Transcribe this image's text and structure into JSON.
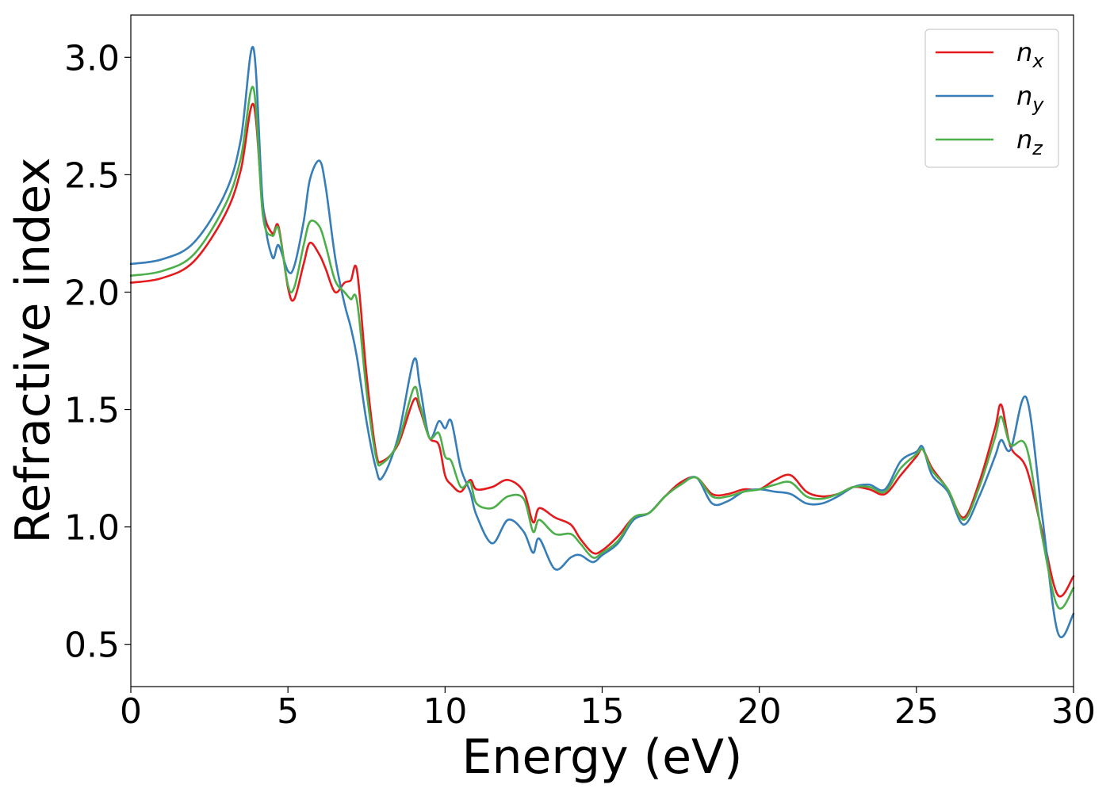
{
  "chart_data": {
    "type": "line",
    "xlabel": "Energy (eV)",
    "ylabel": "Refractive index",
    "xlim": [
      0,
      30
    ],
    "ylim": [
      0.32,
      3.18
    ],
    "xticks": [
      0,
      5,
      10,
      15,
      20,
      25,
      30
    ],
    "yticks": [
      0.5,
      1.0,
      1.5,
      2.0,
      2.5,
      3.0
    ],
    "xtick_labels": [
      "0",
      "5",
      "10",
      "15",
      "20",
      "25",
      "30"
    ],
    "ytick_labels": [
      "0.5",
      "1.0",
      "1.5",
      "2.0",
      "2.5",
      "3.0"
    ],
    "grid": false,
    "legend_position": "top-right",
    "series": [
      {
        "name": "n_x",
        "label_base": "n",
        "label_sub": "x",
        "color": "#e41a1c",
        "x": [
          0,
          1,
          2,
          3,
          3.5,
          3.9,
          4.2,
          4.5,
          4.7,
          5.0,
          5.2,
          5.5,
          5.7,
          6.0,
          6.2,
          6.5,
          6.8,
          7.0,
          7.2,
          7.5,
          7.8,
          8.0,
          8.5,
          9.0,
          9.2,
          9.5,
          9.8,
          10.0,
          10.2,
          10.5,
          10.8,
          11.0,
          11.5,
          12.0,
          12.5,
          12.8,
          13.0,
          13.5,
          14.0,
          14.3,
          14.7,
          15.0,
          15.5,
          16.0,
          16.5,
          17.0,
          17.5,
          18.0,
          18.5,
          19.0,
          19.5,
          20.0,
          20.5,
          21.0,
          21.5,
          22.0,
          22.5,
          23.0,
          23.5,
          24.0,
          24.5,
          25.0,
          25.2,
          25.5,
          26.0,
          26.5,
          27.0,
          27.5,
          27.7,
          28.0,
          28.5,
          29.0,
          29.5,
          30.0
        ],
        "y": [
          2.04,
          2.06,
          2.13,
          2.33,
          2.52,
          2.8,
          2.37,
          2.25,
          2.28,
          2.02,
          1.97,
          2.12,
          2.21,
          2.16,
          2.1,
          2.0,
          2.04,
          2.05,
          2.09,
          1.65,
          1.32,
          1.28,
          1.35,
          1.54,
          1.5,
          1.38,
          1.35,
          1.22,
          1.18,
          1.15,
          1.2,
          1.16,
          1.17,
          1.2,
          1.15,
          1.02,
          1.08,
          1.04,
          1.01,
          0.95,
          0.89,
          0.9,
          0.96,
          1.04,
          1.06,
          1.13,
          1.19,
          1.21,
          1.14,
          1.14,
          1.16,
          1.16,
          1.2,
          1.22,
          1.15,
          1.13,
          1.14,
          1.17,
          1.16,
          1.14,
          1.22,
          1.3,
          1.33,
          1.25,
          1.16,
          1.04,
          1.19,
          1.42,
          1.52,
          1.34,
          1.25,
          0.98,
          0.71,
          0.79
        ]
      },
      {
        "name": "n_y",
        "label_base": "n",
        "label_sub": "y",
        "color": "#377eb8",
        "x": [
          0,
          1,
          2,
          3,
          3.5,
          3.9,
          4.2,
          4.5,
          4.7,
          5.0,
          5.2,
          5.5,
          5.7,
          6.0,
          6.2,
          6.5,
          6.8,
          7.0,
          7.2,
          7.5,
          7.8,
          8.0,
          8.5,
          9.0,
          9.2,
          9.5,
          9.8,
          10.0,
          10.2,
          10.5,
          10.8,
          11.0,
          11.5,
          12.0,
          12.5,
          12.8,
          13.0,
          13.5,
          14.0,
          14.3,
          14.7,
          15.0,
          15.5,
          16.0,
          16.5,
          17.0,
          17.5,
          18.0,
          18.5,
          19.0,
          19.5,
          20.0,
          20.5,
          21.0,
          21.5,
          22.0,
          22.5,
          23.0,
          23.5,
          24.0,
          24.5,
          25.0,
          25.2,
          25.5,
          26.0,
          26.5,
          27.0,
          27.5,
          27.7,
          28.0,
          28.5,
          29.0,
          29.5,
          30.0
        ],
        "y": [
          2.12,
          2.14,
          2.21,
          2.42,
          2.65,
          3.04,
          2.38,
          2.15,
          2.2,
          2.09,
          2.11,
          2.3,
          2.48,
          2.56,
          2.45,
          2.15,
          1.95,
          1.85,
          1.72,
          1.45,
          1.25,
          1.21,
          1.38,
          1.71,
          1.6,
          1.38,
          1.45,
          1.42,
          1.45,
          1.25,
          1.15,
          1.05,
          0.93,
          1.03,
          0.98,
          0.89,
          0.95,
          0.82,
          0.87,
          0.88,
          0.85,
          0.88,
          0.93,
          1.03,
          1.06,
          1.13,
          1.18,
          1.21,
          1.1,
          1.11,
          1.15,
          1.16,
          1.15,
          1.14,
          1.1,
          1.1,
          1.13,
          1.17,
          1.18,
          1.16,
          1.28,
          1.32,
          1.34,
          1.22,
          1.15,
          1.01,
          1.13,
          1.3,
          1.37,
          1.33,
          1.55,
          1.05,
          0.55,
          0.63
        ]
      },
      {
        "name": "n_z",
        "label_base": "n",
        "label_sub": "z",
        "color": "#4daf4a",
        "x": [
          0,
          1,
          2,
          3,
          3.5,
          3.9,
          4.2,
          4.5,
          4.7,
          5.0,
          5.2,
          5.5,
          5.7,
          6.0,
          6.2,
          6.5,
          6.8,
          7.0,
          7.2,
          7.5,
          7.8,
          8.0,
          8.5,
          9.0,
          9.2,
          9.5,
          9.8,
          10.0,
          10.2,
          10.5,
          10.8,
          11.0,
          11.5,
          12.0,
          12.5,
          12.8,
          13.0,
          13.5,
          14.0,
          14.3,
          14.7,
          15.0,
          15.5,
          16.0,
          16.5,
          17.0,
          17.5,
          18.0,
          18.5,
          19.0,
          19.5,
          20.0,
          20.5,
          21.0,
          21.5,
          22.0,
          22.5,
          23.0,
          23.5,
          24.0,
          24.5,
          25.0,
          25.2,
          25.5,
          26.0,
          26.5,
          27.0,
          27.5,
          27.7,
          28.0,
          28.5,
          29.0,
          29.5,
          30.0
        ],
        "y": [
          2.07,
          2.09,
          2.16,
          2.37,
          2.57,
          2.87,
          2.33,
          2.24,
          2.27,
          2.03,
          2.02,
          2.2,
          2.3,
          2.28,
          2.2,
          2.05,
          2.0,
          1.97,
          1.96,
          1.58,
          1.3,
          1.27,
          1.36,
          1.59,
          1.52,
          1.38,
          1.4,
          1.3,
          1.28,
          1.17,
          1.19,
          1.1,
          1.08,
          1.13,
          1.12,
          0.98,
          1.03,
          0.97,
          0.97,
          0.93,
          0.87,
          0.89,
          0.94,
          1.04,
          1.06,
          1.13,
          1.18,
          1.21,
          1.13,
          1.13,
          1.15,
          1.16,
          1.18,
          1.19,
          1.13,
          1.12,
          1.14,
          1.17,
          1.17,
          1.15,
          1.25,
          1.31,
          1.33,
          1.24,
          1.16,
          1.03,
          1.17,
          1.38,
          1.47,
          1.35,
          1.34,
          0.96,
          0.66,
          0.74
        ]
      }
    ]
  }
}
